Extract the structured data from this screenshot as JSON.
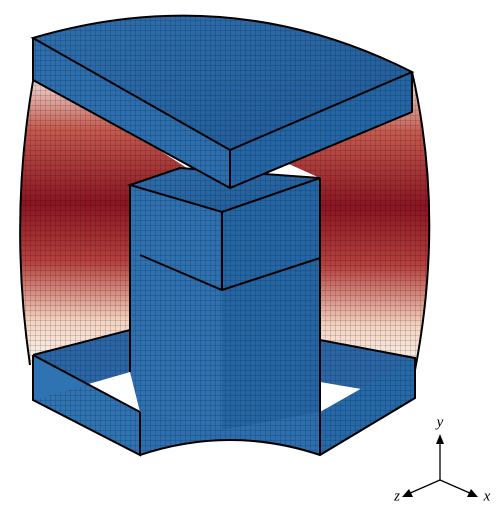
{
  "axes": {
    "y": "y",
    "z": "z",
    "x": "x"
  }
}
